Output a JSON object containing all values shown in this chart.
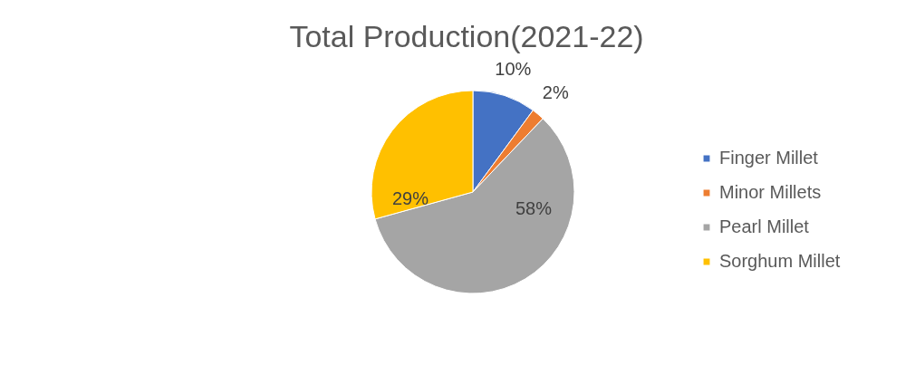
{
  "chart_data": {
    "type": "pie",
    "title": "Total Production(2021-22)",
    "categories": [
      "Finger Millet",
      "Minor Millets",
      "Pearl Millet",
      "Sorghum Millet"
    ],
    "values": [
      10,
      2,
      58,
      29
    ],
    "colors": [
      "#4472c4",
      "#ed7d31",
      "#a5a5a5",
      "#ffc000"
    ],
    "value_labels": [
      "10%",
      "2%",
      "58%",
      "29%"
    ],
    "legend": "right"
  }
}
